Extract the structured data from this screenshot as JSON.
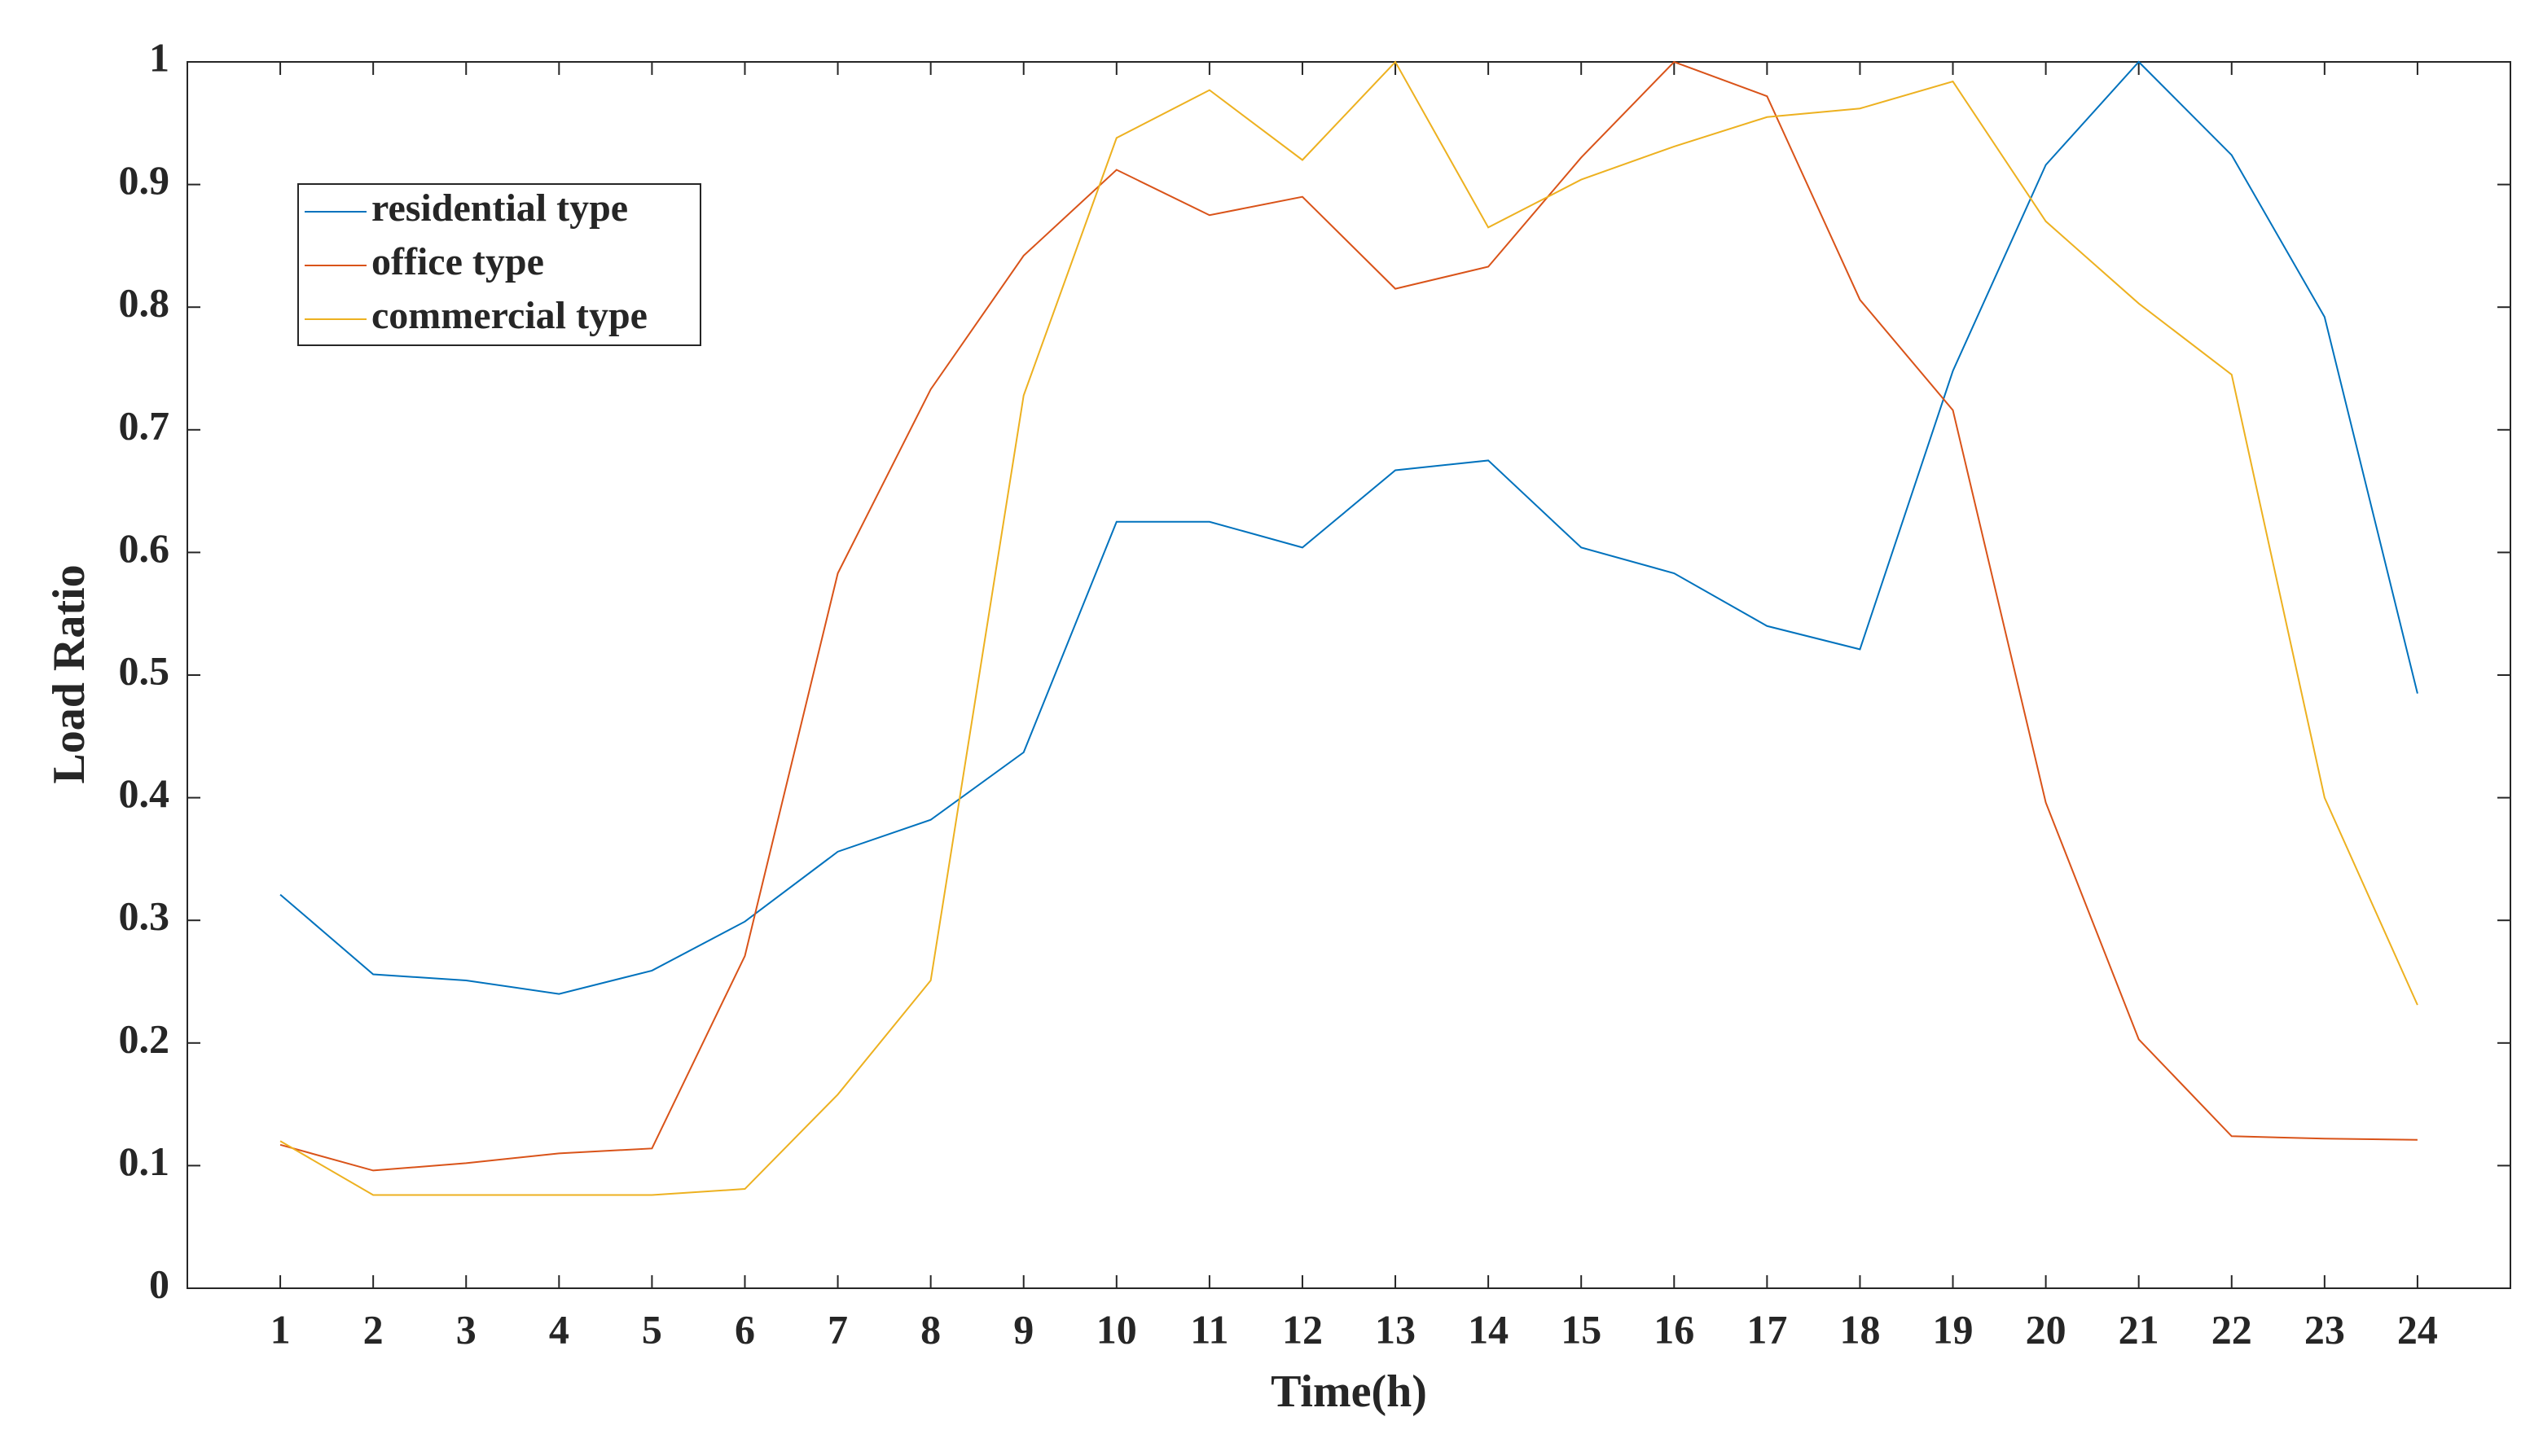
{
  "chart_data": {
    "type": "line",
    "xlabel": "Time(h)",
    "ylabel": "Load Ratio",
    "x": [
      1,
      2,
      3,
      4,
      5,
      6,
      7,
      8,
      9,
      10,
      11,
      12,
      13,
      14,
      15,
      16,
      17,
      18,
      19,
      20,
      21,
      22,
      23,
      24
    ],
    "xlim": [
      0,
      25
    ],
    "xticks": [
      1,
      2,
      3,
      4,
      5,
      6,
      7,
      8,
      9,
      10,
      11,
      12,
      13,
      14,
      15,
      16,
      17,
      18,
      19,
      20,
      21,
      22,
      23,
      24
    ],
    "ylim": [
      0,
      1
    ],
    "yticks": [
      0,
      0.1,
      0.2,
      0.3,
      0.4,
      0.5,
      0.6,
      0.7,
      0.8,
      0.9,
      1
    ],
    "grid": false,
    "legend": "upper left",
    "series": [
      {
        "name": "residential type",
        "color": "#0072BD",
        "values": [
          0.321,
          0.256,
          0.251,
          0.24,
          0.259,
          0.299,
          0.356,
          0.382,
          0.437,
          0.625,
          0.625,
          0.604,
          0.667,
          0.675,
          0.604,
          0.583,
          0.54,
          0.521,
          0.748,
          0.916,
          1.0,
          0.924,
          0.792,
          0.485
        ]
      },
      {
        "name": "office type",
        "color": "#D95319",
        "values": [
          0.117,
          0.096,
          0.102,
          0.11,
          0.114,
          0.271,
          0.583,
          0.733,
          0.842,
          0.912,
          0.875,
          0.89,
          0.815,
          0.833,
          0.922,
          1.0,
          0.972,
          0.806,
          0.716,
          0.396,
          0.203,
          0.124,
          0.122,
          0.121
        ]
      },
      {
        "name": "commercial type",
        "color": "#EDB120",
        "values": [
          0.12,
          0.076,
          0.076,
          0.076,
          0.076,
          0.081,
          0.158,
          0.251,
          0.728,
          0.938,
          0.977,
          0.92,
          1.0,
          0.865,
          0.904,
          0.931,
          0.955,
          0.962,
          0.984,
          0.87,
          0.803,
          0.745,
          0.4,
          0.231
        ]
      }
    ]
  }
}
